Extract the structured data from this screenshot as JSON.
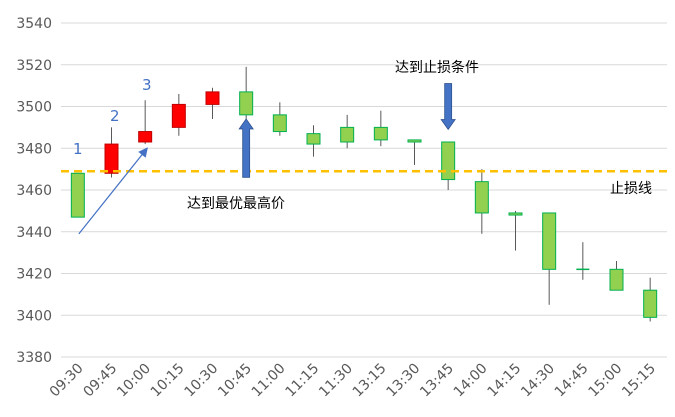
{
  "chart_data": {
    "type": "candlestick",
    "categories": [
      "09:30",
      "09:45",
      "10:00",
      "10:15",
      "10:30",
      "10:45",
      "11:00",
      "11:15",
      "11:30",
      "13:15",
      "13:30",
      "13:45",
      "14:00",
      "14:15",
      "14:30",
      "14:45",
      "15:00",
      "15:15"
    ],
    "ohlc": [
      {
        "open": 3468,
        "high": 3468,
        "low": 3447,
        "close": 3447
      },
      {
        "open": 3468,
        "high": 3490,
        "low": 3466,
        "close": 3482
      },
      {
        "open": 3483,
        "high": 3503,
        "low": 3482,
        "close": 3488
      },
      {
        "open": 3490,
        "high": 3506,
        "low": 3486,
        "close": 3501
      },
      {
        "open": 3501,
        "high": 3509,
        "low": 3494,
        "close": 3507
      },
      {
        "open": 3507,
        "high": 3519,
        "low": 3494,
        "close": 3496
      },
      {
        "open": 3496,
        "high": 3502,
        "low": 3486,
        "close": 3488
      },
      {
        "open": 3487,
        "high": 3491,
        "low": 3476,
        "close": 3482
      },
      {
        "open": 3490,
        "high": 3496,
        "low": 3480,
        "close": 3483
      },
      {
        "open": 3490,
        "high": 3498,
        "low": 3481,
        "close": 3484
      },
      {
        "open": 3484,
        "high": 3484,
        "low": 3472,
        "close": 3483
      },
      {
        "open": 3483,
        "high": 3483,
        "low": 3460,
        "close": 3465
      },
      {
        "open": 3464,
        "high": 3470,
        "low": 3439,
        "close": 3449
      },
      {
        "open": 3449,
        "high": 3450,
        "low": 3431,
        "close": 3448
      },
      {
        "open": 3449,
        "high": 3449,
        "low": 3405,
        "close": 3422
      },
      {
        "open": 3422,
        "high": 3435,
        "low": 3417,
        "close": 3422
      },
      {
        "open": 3422,
        "high": 3426,
        "low": 3412,
        "close": 3412
      },
      {
        "open": 3412,
        "high": 3418,
        "low": 3397,
        "close": 3399
      }
    ],
    "ylim": [
      3380,
      3540
    ],
    "yticks": [
      3380,
      3400,
      3420,
      3440,
      3460,
      3480,
      3500,
      3520,
      3540
    ],
    "grid": true,
    "stop_loss_level": 3469,
    "annotations": {
      "stop_loss_line_label": "止损线",
      "highest_price_label": "达到最优最高价",
      "stop_trigger_label": "达到止损条件",
      "steps": [
        "1",
        "2",
        "3"
      ]
    },
    "colors": {
      "up_fill": "#ff0000",
      "down_fill": "#92d050",
      "down_edge": "#00b050",
      "stop_line": "#ffc000",
      "arrow": "#4472c4",
      "grid": "#d9d9d9",
      "wick": "#595959"
    }
  }
}
